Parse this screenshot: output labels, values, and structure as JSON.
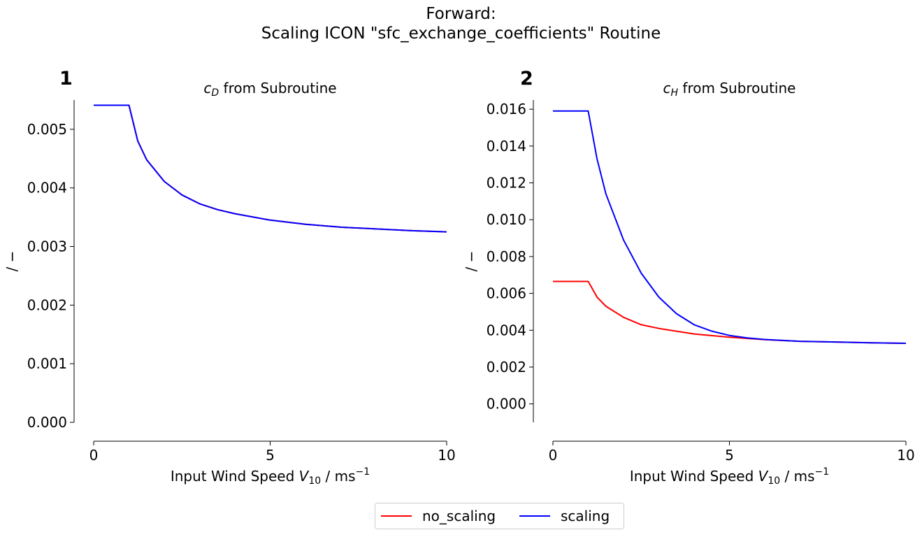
{
  "figure": {
    "title_line1": "Forward:",
    "title_line2": "Scaling ICON \"sfc_exchange_coefficients\" Routine"
  },
  "legend": {
    "items": [
      {
        "label": "no_scaling",
        "color": "#ff0000"
      },
      {
        "label": "scaling",
        "color": "#0000ff"
      }
    ]
  },
  "chart_data": [
    {
      "type": "line",
      "panel_label": "1",
      "title_var": "c",
      "title_sub": "D",
      "title_rest": " from Subroutine",
      "xlabel_pre": "Input Wind Speed ",
      "xlabel_var": "V",
      "xlabel_sub": "10",
      "xlabel_post": " / ms",
      "xlabel_sup": "−1",
      "ylabel": "/ −",
      "xlim": [
        0,
        10
      ],
      "ylim": [
        0,
        0.0055
      ],
      "xticks": [
        0,
        5,
        10
      ],
      "xtick_labels": [
        "0",
        "5",
        "10"
      ],
      "yticks": [
        0,
        0.001,
        0.002,
        0.003,
        0.004,
        0.005
      ],
      "ytick_labels": [
        "0.000",
        "0.001",
        "0.002",
        "0.003",
        "0.004",
        "0.005"
      ],
      "grid": false,
      "series": [
        {
          "name": "no_scaling",
          "color": "#ff0000",
          "x": [
            0,
            0.5,
            1,
            1.25,
            1.5,
            2,
            2.5,
            3,
            3.5,
            4,
            5,
            6,
            7,
            8,
            9,
            10
          ],
          "y": [
            0.00541,
            0.00541,
            0.00541,
            0.0048,
            0.00448,
            0.00411,
            0.00388,
            0.00373,
            0.00363,
            0.00356,
            0.00345,
            0.00338,
            0.00333,
            0.0033,
            0.00327,
            0.00325
          ]
        },
        {
          "name": "scaling",
          "color": "#0000ff",
          "x": [
            0,
            0.5,
            1,
            1.25,
            1.5,
            2,
            2.5,
            3,
            3.5,
            4,
            5,
            6,
            7,
            8,
            9,
            10
          ],
          "y": [
            0.00541,
            0.00541,
            0.00541,
            0.0048,
            0.00448,
            0.00411,
            0.00388,
            0.00373,
            0.00363,
            0.00356,
            0.00345,
            0.00338,
            0.00333,
            0.0033,
            0.00327,
            0.00325
          ]
        }
      ]
    },
    {
      "type": "line",
      "panel_label": "2",
      "title_var": "c",
      "title_sub": "H",
      "title_rest": " from Subroutine",
      "xlabel_pre": "Input Wind Speed ",
      "xlabel_var": "V",
      "xlabel_sub": "10",
      "xlabel_post": " / ms",
      "xlabel_sup": "−1",
      "ylabel": "/ −",
      "xlim": [
        0,
        10
      ],
      "ylim": [
        -0.001,
        0.0165
      ],
      "xticks": [
        0,
        5,
        10
      ],
      "xtick_labels": [
        "0",
        "5",
        "10"
      ],
      "yticks": [
        0,
        0.002,
        0.004,
        0.006,
        0.008,
        0.01,
        0.012,
        0.014,
        0.016
      ],
      "ytick_labels": [
        "0.000",
        "0.002",
        "0.004",
        "0.006",
        "0.008",
        "0.010",
        "0.012",
        "0.014",
        "0.016"
      ],
      "grid": false,
      "series": [
        {
          "name": "no_scaling",
          "color": "#ff0000",
          "x": [
            0,
            0.5,
            1,
            1.25,
            1.5,
            2,
            2.5,
            3,
            4,
            5,
            6,
            7,
            8,
            9,
            10
          ],
          "y": [
            0.00665,
            0.00665,
            0.00665,
            0.0058,
            0.0053,
            0.0047,
            0.0043,
            0.0041,
            0.0038,
            0.00362,
            0.00349,
            0.0034,
            0.00336,
            0.00332,
            0.00329
          ]
        },
        {
          "name": "scaling",
          "color": "#0000ff",
          "x": [
            0,
            0.5,
            1,
            1.25,
            1.5,
            2,
            2.5,
            3,
            3.5,
            4,
            4.5,
            5,
            5.5,
            6,
            7,
            8,
            9,
            10
          ],
          "y": [
            0.0159,
            0.0159,
            0.0159,
            0.0133,
            0.0114,
            0.0089,
            0.0071,
            0.0058,
            0.0049,
            0.0043,
            0.00395,
            0.00372,
            0.00358,
            0.0035,
            0.0034,
            0.00336,
            0.00332,
            0.00329
          ]
        }
      ]
    }
  ]
}
